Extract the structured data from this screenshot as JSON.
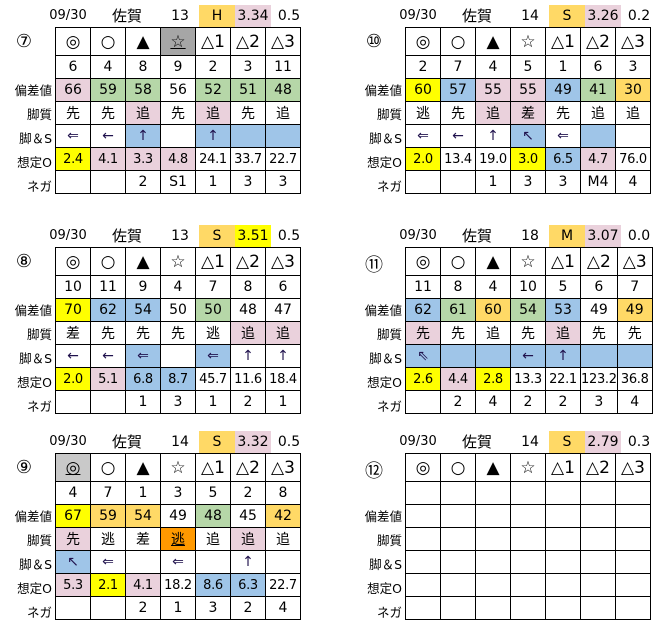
{
  "colors": {
    "p": "#ead1dc",
    "g": "#b6d7a8",
    "b": "#9fc5e8",
    "y": "#ffff00",
    "o": "#ffd966",
    "r": "#ff9900",
    "d": "#a6a6a6",
    "l": "#c9c9c9"
  },
  "row_labels": [
    "",
    "",
    "偏差値",
    "脚質",
    "脚＆S",
    "想定O",
    "ネガ"
  ],
  "races": [
    {
      "race": "⑦",
      "header": {
        "date": "09/30",
        "venue": "佐賀",
        "count": "13",
        "grade": "H",
        "grade_color": "o",
        "index": "3.34",
        "index_color": "p",
        "last": "0.5"
      },
      "rows": [
        [
          [
            "◎",
            ""
          ],
          [
            "○",
            ""
          ],
          [
            "▲",
            ""
          ],
          [
            "☆",
            "d",
            "u"
          ],
          [
            "△1",
            ""
          ],
          [
            "△2",
            ""
          ],
          [
            "△3",
            ""
          ]
        ],
        [
          [
            "6",
            ""
          ],
          [
            "4",
            ""
          ],
          [
            "8",
            ""
          ],
          [
            "9",
            ""
          ],
          [
            "2",
            ""
          ],
          [
            "3",
            ""
          ],
          [
            "11",
            ""
          ]
        ],
        [
          [
            "66",
            "p"
          ],
          [
            "59",
            "g"
          ],
          [
            "58",
            "g"
          ],
          [
            "56",
            ""
          ],
          [
            "52",
            "g"
          ],
          [
            "51",
            "g"
          ],
          [
            "48",
            "g"
          ]
        ],
        [
          [
            "先",
            ""
          ],
          [
            "先",
            ""
          ],
          [
            "追",
            "p"
          ],
          [
            "先",
            ""
          ],
          [
            "追",
            "p"
          ],
          [
            "先",
            ""
          ],
          [
            "追",
            ""
          ]
        ],
        [
          [
            "⇐",
            ""
          ],
          [
            "←",
            ""
          ],
          [
            "↑",
            "b"
          ],
          [
            "",
            ""
          ],
          [
            "↑",
            "b"
          ],
          [
            "",
            "b"
          ],
          [
            "",
            "b"
          ]
        ],
        [
          [
            "2.4",
            "y"
          ],
          [
            "4.1",
            "p"
          ],
          [
            "3.3",
            "p"
          ],
          [
            "4.8",
            "p"
          ],
          [
            "24.1",
            ""
          ],
          [
            "33.7",
            ""
          ],
          [
            "22.7",
            ""
          ]
        ],
        [
          [
            "",
            ""
          ],
          [
            "",
            ""
          ],
          [
            "2",
            ""
          ],
          [
            "S1",
            ""
          ],
          [
            "1",
            ""
          ],
          [
            "3",
            ""
          ],
          [
            "3",
            ""
          ]
        ]
      ]
    },
    {
      "race": "⑩",
      "header": {
        "date": "09/30",
        "venue": "佐賀",
        "count": "14",
        "grade": "S",
        "grade_color": "o",
        "index": "3.26",
        "index_color": "p",
        "last": "0.2"
      },
      "rows": [
        [
          [
            "◎",
            ""
          ],
          [
            "○",
            ""
          ],
          [
            "▲",
            ""
          ],
          [
            "☆",
            ""
          ],
          [
            "△1",
            ""
          ],
          [
            "△2",
            ""
          ],
          [
            "△3",
            ""
          ]
        ],
        [
          [
            "2",
            ""
          ],
          [
            "7",
            ""
          ],
          [
            "4",
            ""
          ],
          [
            "5",
            ""
          ],
          [
            "1",
            ""
          ],
          [
            "6",
            ""
          ],
          [
            "3",
            ""
          ]
        ],
        [
          [
            "60",
            "y"
          ],
          [
            "57",
            "b"
          ],
          [
            "55",
            "p"
          ],
          [
            "55",
            "p"
          ],
          [
            "49",
            "b"
          ],
          [
            "41",
            "g"
          ],
          [
            "30",
            "o"
          ]
        ],
        [
          [
            "逃",
            ""
          ],
          [
            "先",
            ""
          ],
          [
            "追",
            "p"
          ],
          [
            "差",
            "p"
          ],
          [
            "先",
            ""
          ],
          [
            "追",
            ""
          ],
          [
            "追",
            ""
          ]
        ],
        [
          [
            "⇐",
            ""
          ],
          [
            "←",
            ""
          ],
          [
            "↑",
            ""
          ],
          [
            "↖",
            "b"
          ],
          [
            "⇐",
            ""
          ],
          [
            "",
            "b"
          ],
          [
            "",
            ""
          ]
        ],
        [
          [
            "2.0",
            "y"
          ],
          [
            "13.4",
            ""
          ],
          [
            "19.0",
            ""
          ],
          [
            "3.0",
            "y"
          ],
          [
            "6.5",
            "b"
          ],
          [
            "4.7",
            "p"
          ],
          [
            "76.0",
            ""
          ]
        ],
        [
          [
            "",
            ""
          ],
          [
            "",
            ""
          ],
          [
            "1",
            ""
          ],
          [
            "3",
            ""
          ],
          [
            "3",
            ""
          ],
          [
            "M4",
            ""
          ],
          [
            "4",
            ""
          ]
        ]
      ]
    },
    {
      "race": "⑧",
      "header": {
        "date": "09/30",
        "venue": "佐賀",
        "count": "13",
        "grade": "S",
        "grade_color": "o",
        "index": "3.51",
        "index_color": "y",
        "last": "0.5"
      },
      "rows": [
        [
          [
            "◎",
            ""
          ],
          [
            "○",
            ""
          ],
          [
            "▲",
            ""
          ],
          [
            "☆",
            ""
          ],
          [
            "△1",
            ""
          ],
          [
            "△2",
            ""
          ],
          [
            "△3",
            ""
          ]
        ],
        [
          [
            "10",
            ""
          ],
          [
            "11",
            ""
          ],
          [
            "9",
            ""
          ],
          [
            "4",
            ""
          ],
          [
            "7",
            ""
          ],
          [
            "8",
            ""
          ],
          [
            "6",
            ""
          ]
        ],
        [
          [
            "70",
            "y"
          ],
          [
            "62",
            "b"
          ],
          [
            "54",
            "b"
          ],
          [
            "50",
            ""
          ],
          [
            "50",
            "g"
          ],
          [
            "48",
            ""
          ],
          [
            "47",
            ""
          ]
        ],
        [
          [
            "差",
            ""
          ],
          [
            "先",
            ""
          ],
          [
            "先",
            ""
          ],
          [
            "先",
            ""
          ],
          [
            "逃",
            ""
          ],
          [
            "追",
            "p"
          ],
          [
            "追",
            "p"
          ]
        ],
        [
          [
            "←",
            ""
          ],
          [
            "←",
            ""
          ],
          [
            "⇐",
            "b"
          ],
          [
            "",
            ""
          ],
          [
            "⇐",
            "b"
          ],
          [
            "↑",
            ""
          ],
          [
            "↑",
            ""
          ]
        ],
        [
          [
            "2.0",
            "y"
          ],
          [
            "5.1",
            "p"
          ],
          [
            "6.8",
            "b"
          ],
          [
            "8.7",
            "b"
          ],
          [
            "45.7",
            ""
          ],
          [
            "11.6",
            ""
          ],
          [
            "18.4",
            ""
          ]
        ],
        [
          [
            "",
            ""
          ],
          [
            "",
            ""
          ],
          [
            "1",
            ""
          ],
          [
            "3",
            ""
          ],
          [
            "1",
            ""
          ],
          [
            "2",
            ""
          ],
          [
            "1",
            ""
          ]
        ]
      ]
    },
    {
      "race": "⑪",
      "header": {
        "date": "09/30",
        "venue": "佐賀",
        "count": "18",
        "grade": "M",
        "grade_color": "o",
        "index": "3.07",
        "index_color": "p",
        "last": "0.0"
      },
      "rows": [
        [
          [
            "◎",
            ""
          ],
          [
            "○",
            ""
          ],
          [
            "▲",
            ""
          ],
          [
            "☆",
            ""
          ],
          [
            "△1",
            ""
          ],
          [
            "△2",
            ""
          ],
          [
            "△3",
            ""
          ]
        ],
        [
          [
            "11",
            ""
          ],
          [
            "8",
            ""
          ],
          [
            "4",
            ""
          ],
          [
            "10",
            ""
          ],
          [
            "5",
            ""
          ],
          [
            "6",
            ""
          ],
          [
            "7",
            ""
          ]
        ],
        [
          [
            "62",
            "b"
          ],
          [
            "61",
            "g"
          ],
          [
            "60",
            "o"
          ],
          [
            "54",
            "g"
          ],
          [
            "53",
            "b"
          ],
          [
            "49",
            ""
          ],
          [
            "49",
            "o"
          ]
        ],
        [
          [
            "先",
            "p"
          ],
          [
            "先",
            ""
          ],
          [
            "追",
            ""
          ],
          [
            "先",
            ""
          ],
          [
            "追",
            "p"
          ],
          [
            "先",
            ""
          ],
          [
            "先",
            ""
          ]
        ],
        [
          [
            "⇖",
            "b"
          ],
          [
            "",
            "b"
          ],
          [
            "",
            "b"
          ],
          [
            "←",
            "b"
          ],
          [
            "↑",
            "b"
          ],
          [
            "",
            "b"
          ],
          [
            "",
            "b"
          ]
        ],
        [
          [
            "2.6",
            "y"
          ],
          [
            "4.4",
            "p"
          ],
          [
            "2.8",
            "y"
          ],
          [
            "13.3",
            ""
          ],
          [
            "22.1",
            ""
          ],
          [
            "123.2",
            ""
          ],
          [
            "36.8",
            ""
          ]
        ],
        [
          [
            "",
            ""
          ],
          [
            "2",
            ""
          ],
          [
            "4",
            ""
          ],
          [
            "2",
            ""
          ],
          [
            "2",
            ""
          ],
          [
            "3",
            ""
          ],
          [
            "4",
            ""
          ]
        ]
      ]
    },
    {
      "race": "⑨",
      "header": {
        "date": "09/30",
        "venue": "佐賀",
        "count": "14",
        "grade": "S",
        "grade_color": "o",
        "index": "3.32",
        "index_color": "p",
        "last": "0.5"
      },
      "rows": [
        [
          [
            "◎",
            "l",
            "u"
          ],
          [
            "○",
            ""
          ],
          [
            "▲",
            ""
          ],
          [
            "☆",
            ""
          ],
          [
            "△1",
            ""
          ],
          [
            "△2",
            ""
          ],
          [
            "△3",
            ""
          ]
        ],
        [
          [
            "4",
            ""
          ],
          [
            "7",
            ""
          ],
          [
            "1",
            ""
          ],
          [
            "3",
            ""
          ],
          [
            "5",
            ""
          ],
          [
            "2",
            ""
          ],
          [
            "8",
            ""
          ]
        ],
        [
          [
            "67",
            "y"
          ],
          [
            "59",
            "o"
          ],
          [
            "54",
            "o"
          ],
          [
            "49",
            ""
          ],
          [
            "48",
            "g"
          ],
          [
            "45",
            ""
          ],
          [
            "42",
            "o"
          ]
        ],
        [
          [
            "先",
            "p"
          ],
          [
            "逃",
            ""
          ],
          [
            "差",
            ""
          ],
          [
            "逃",
            "r",
            "u"
          ],
          [
            "追",
            ""
          ],
          [
            "追",
            "p"
          ],
          [
            "追",
            ""
          ]
        ],
        [
          [
            "↖",
            "b"
          ],
          [
            "⇐",
            ""
          ],
          [
            "",
            ""
          ],
          [
            "⇐",
            ""
          ],
          [
            "",
            ""
          ],
          [
            "↑",
            ""
          ],
          [
            "",
            ""
          ]
        ],
        [
          [
            "5.3",
            "p"
          ],
          [
            "2.1",
            "y"
          ],
          [
            "4.1",
            "p"
          ],
          [
            "18.2",
            ""
          ],
          [
            "8.6",
            "b"
          ],
          [
            "6.3",
            "b"
          ],
          [
            "22.7",
            ""
          ]
        ],
        [
          [
            "",
            ""
          ],
          [
            "",
            ""
          ],
          [
            "2",
            ""
          ],
          [
            "1",
            ""
          ],
          [
            "3",
            ""
          ],
          [
            "2",
            ""
          ],
          [
            "4",
            ""
          ]
        ]
      ]
    },
    {
      "race": "⑫",
      "header": {
        "date": "09/30",
        "venue": "佐賀",
        "count": "14",
        "grade": "S",
        "grade_color": "o",
        "index": "2.79",
        "index_color": "p",
        "last": "0.3"
      },
      "rows": [
        [
          [
            "◎",
            ""
          ],
          [
            "○",
            ""
          ],
          [
            "▲",
            ""
          ],
          [
            "☆",
            ""
          ],
          [
            "△1",
            ""
          ],
          [
            "△2",
            ""
          ],
          [
            "△3",
            ""
          ]
        ],
        [
          [
            "",
            ""
          ],
          [
            "",
            ""
          ],
          [
            "",
            ""
          ],
          [
            "",
            ""
          ],
          [
            "",
            ""
          ],
          [
            "",
            ""
          ],
          [
            "",
            ""
          ]
        ],
        [
          [
            "",
            ""
          ],
          [
            "",
            ""
          ],
          [
            "",
            ""
          ],
          [
            "",
            ""
          ],
          [
            "",
            ""
          ],
          [
            "",
            ""
          ],
          [
            "",
            ""
          ]
        ],
        [
          [
            "",
            ""
          ],
          [
            "",
            ""
          ],
          [
            "",
            ""
          ],
          [
            "",
            ""
          ],
          [
            "",
            ""
          ],
          [
            "",
            ""
          ],
          [
            "",
            ""
          ]
        ],
        [
          [
            "",
            ""
          ],
          [
            "",
            ""
          ],
          [
            "",
            ""
          ],
          [
            "",
            ""
          ],
          [
            "",
            ""
          ],
          [
            "",
            ""
          ],
          [
            "",
            ""
          ]
        ],
        [
          [
            "",
            ""
          ],
          [
            "",
            ""
          ],
          [
            "",
            ""
          ],
          [
            "",
            ""
          ],
          [
            "",
            ""
          ],
          [
            "",
            ""
          ],
          [
            "",
            ""
          ]
        ],
        [
          [
            "",
            ""
          ],
          [
            "",
            ""
          ],
          [
            "",
            ""
          ],
          [
            "",
            ""
          ],
          [
            "",
            ""
          ],
          [
            "",
            ""
          ],
          [
            "",
            ""
          ]
        ]
      ]
    }
  ]
}
